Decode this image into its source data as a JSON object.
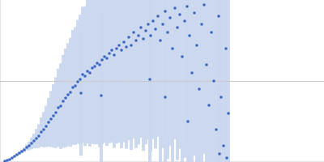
{
  "chart_data": {
    "type": "scatter",
    "color": "#3a66c0",
    "grid": true,
    "tick_labels": false,
    "xlim": [
      0,
      4
    ],
    "ylim": [
      0,
      2.2
    ],
    "yticks": [
      1.1
    ],
    "x": [
      0.06,
      0.09,
      0.12,
      0.15,
      0.18,
      0.21,
      0.24,
      0.27,
      0.3,
      0.33,
      0.36,
      0.39,
      0.42,
      0.45,
      0.48,
      0.51,
      0.54,
      0.57,
      0.6,
      0.63,
      0.66,
      0.69,
      0.72,
      0.75,
      0.78,
      0.81,
      0.84,
      0.87,
      0.9,
      0.93,
      0.96,
      0.99,
      1.0,
      1.02,
      1.05,
      1.08,
      1.11,
      1.14,
      1.17,
      1.2,
      1.23,
      1.25,
      1.26,
      1.29,
      1.32,
      1.35,
      1.38,
      1.41,
      1.44,
      1.47,
      1.5,
      1.53,
      1.56,
      1.59,
      1.62,
      1.65,
      1.68,
      1.71,
      1.74,
      1.77,
      1.8,
      1.83,
      1.85,
      1.86,
      1.89,
      1.92,
      1.95,
      1.98,
      2.01,
      2.04,
      2.04,
      2.07,
      2.1,
      2.13,
      2.16,
      2.19,
      2.22,
      2.25,
      2.28,
      2.31,
      2.32,
      2.34,
      2.37,
      2.4,
      2.43,
      2.46,
      2.49,
      2.52,
      2.55,
      2.58,
      2.61,
      2.64,
      2.67,
      2.7,
      2.71,
      2.73,
      2.76,
      2.79,
      2.8,
      2.82
    ],
    "values": [
      0.011,
      0.022,
      0.033,
      0.055,
      0.077,
      0.099,
      0.121,
      0.143,
      0.165,
      0.198,
      0.22,
      0.253,
      0.286,
      0.319,
      0.352,
      0.407,
      0.44,
      0.484,
      0.539,
      0.583,
      0.627,
      0.671,
      0.737,
      0.759,
      0.825,
      0.869,
      0.913,
      0.946,
      1.012,
      1.034,
      1.089,
      1.122,
      0.935,
      1.188,
      1.166,
      1.232,
      1.21,
      1.276,
      1.298,
      1.342,
      1.32,
      0.902,
      1.386,
      1.43,
      1.408,
      1.474,
      1.518,
      1.452,
      1.54,
      1.584,
      1.518,
      1.628,
      1.562,
      1.694,
      1.584,
      1.76,
      1.65,
      1.716,
      1.826,
      1.672,
      1.782,
      1.87,
      1.122,
      1.716,
      1.914,
      1.804,
      1.98,
      1.65,
      1.87,
      2.046,
      0.88,
      1.76,
      1.958,
      1.54,
      2.09,
      1.826,
      2.002,
      1.43,
      1.914,
      2.112,
      0.55,
      1.716,
      1.21,
      2.024,
      1.584,
      0.99,
      1.87,
      2.134,
      1.32,
      0.77,
      1.76,
      1.1,
      0.44,
      1.98,
      0.11,
      0.88,
      0.22,
      1.54,
      0.055,
      0.66
    ],
    "errors": [
      0.005,
      0.005,
      0.008,
      0.01,
      0.012,
      0.015,
      0.02,
      0.025,
      0.03,
      0.04,
      0.06,
      0.08,
      0.1,
      0.13,
      0.16,
      0.2,
      0.24,
      0.28,
      0.33,
      0.38,
      0.43,
      0.48,
      0.53,
      0.58,
      0.63,
      0.67,
      0.7,
      0.74,
      0.78,
      0.8,
      0.84,
      0.88,
      0.85,
      0.92,
      0.95,
      0.98,
      1.0,
      1.03,
      1.06,
      1.1,
      1.12,
      1.1,
      1.14,
      1.17,
      1.19,
      1.22,
      1.25,
      1.26,
      1.29,
      1.32,
      1.33,
      1.36,
      1.38,
      1.4,
      1.42,
      1.44,
      1.46,
      1.48,
      1.5,
      1.52,
      1.54,
      1.56,
      1.57,
      1.58,
      1.6,
      1.62,
      1.64,
      1.66,
      1.68,
      1.7,
      1.7,
      1.72,
      1.74,
      1.76,
      1.78,
      1.8,
      1.82,
      1.84,
      1.86,
      1.88,
      1.88,
      1.9,
      1.92,
      1.94,
      1.96,
      1.98,
      2.0,
      2.02,
      2.04,
      2.06,
      2.08,
      2.1,
      2.12,
      2.14,
      2.14,
      2.16,
      2.18,
      2.2,
      2.2,
      2.22
    ]
  }
}
